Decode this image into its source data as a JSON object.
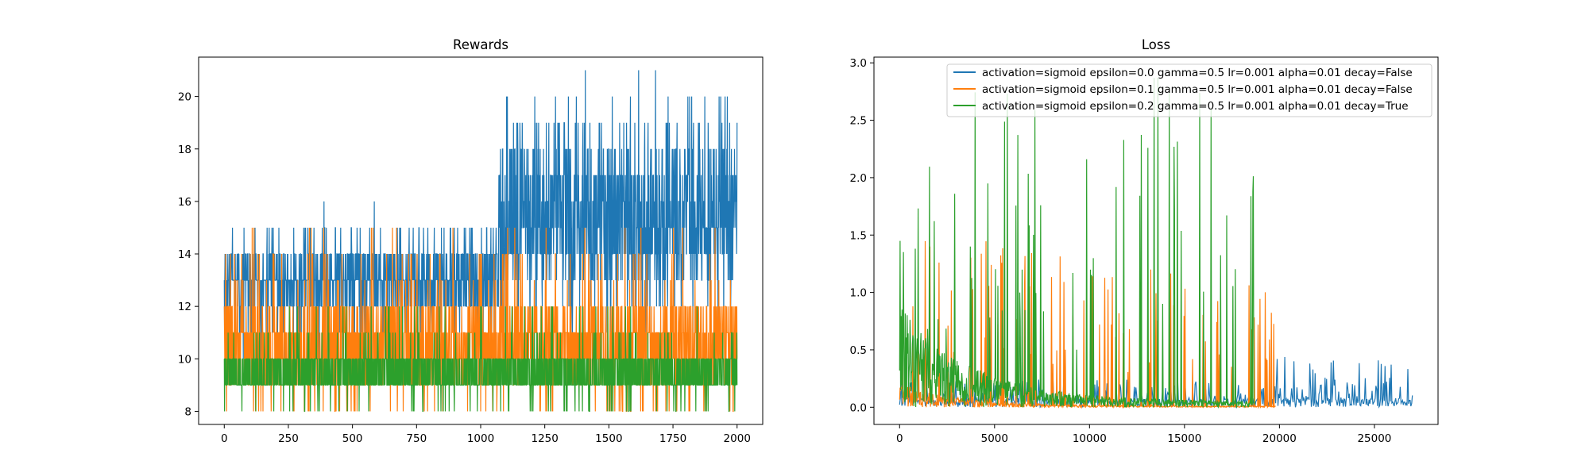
{
  "colors": {
    "blue": "#1f77b4",
    "orange": "#ff7f0e",
    "green": "#2ca02c"
  },
  "chart_data": [
    {
      "type": "line",
      "title": "Rewards",
      "xlabel": "",
      "ylabel": "",
      "xlim": [
        -100,
        2100
      ],
      "ylim": [
        7.5,
        21.5
      ],
      "xticks": [
        0,
        250,
        500,
        750,
        1000,
        1250,
        1500,
        1750,
        2000
      ],
      "yticks": [
        8,
        10,
        12,
        14,
        16,
        18,
        20
      ],
      "grid": false,
      "legend": "none",
      "x_range": [
        0,
        2000
      ],
      "series": [
        {
          "color": "#1f77b4",
          "segments": [
            {
              "x_start": 0,
              "x_end": 1070,
              "values_min": 10,
              "values_max": 15,
              "typical_low": 12,
              "typical_high": 14,
              "observed_max": 16
            },
            {
              "x_start": 1070,
              "x_end": 2000,
              "values_min": 11,
              "values_max": 20,
              "typical_low": 13,
              "typical_high": 18,
              "observed_max": 21
            }
          ]
        },
        {
          "color": "#ff7f0e",
          "segments": [
            {
              "x_start": 0,
              "x_end": 2000,
              "values_min": 8,
              "values_max": 15,
              "typical_low": 9,
              "typical_high": 12
            }
          ]
        },
        {
          "color": "#2ca02c",
          "segments": [
            {
              "x_start": 0,
              "x_end": 2000,
              "values_min": 8,
              "values_max": 12,
              "typical_low": 9,
              "typical_high": 10
            }
          ]
        }
      ]
    },
    {
      "type": "line",
      "title": "Loss",
      "xlabel": "",
      "ylabel": "",
      "xlim": [
        -1350,
        28350
      ],
      "ylim": [
        -0.15,
        3.05
      ],
      "xticks": [
        0,
        5000,
        10000,
        15000,
        20000,
        25000
      ],
      "yticks": [
        0.0,
        0.5,
        1.0,
        1.5,
        2.0,
        2.5,
        3.0
      ],
      "ytick_labels": [
        "0.0",
        "0.5",
        "1.0",
        "1.5",
        "2.0",
        "2.5",
        "3.0"
      ],
      "grid": false,
      "legend": "top-right",
      "series": [
        {
          "name": "activation=sigmoid epsilon=0.0 gamma=0.5 lr=0.001 alpha=0.01 decay=False",
          "color": "#1f77b4",
          "x_range": [
            0,
            27000
          ],
          "baseline_max": 0.25,
          "spike_max": 0.45
        },
        {
          "name": "activation=sigmoid epsilon=0.1 gamma=0.5 lr=0.001 alpha=0.01 decay=False",
          "color": "#ff7f0e",
          "x_range": [
            0,
            19800
          ],
          "baseline_max": 0.2,
          "spike_max": 1.6
        },
        {
          "name": "activation=sigmoid epsilon=0.2 gamma=0.5 lr=0.001 alpha=0.01 decay=True",
          "color": "#2ca02c",
          "x_range": [
            0,
            18700
          ],
          "baseline_start": 0.9,
          "baseline_end": 0.05,
          "spike_max": 2.9
        }
      ]
    }
  ]
}
